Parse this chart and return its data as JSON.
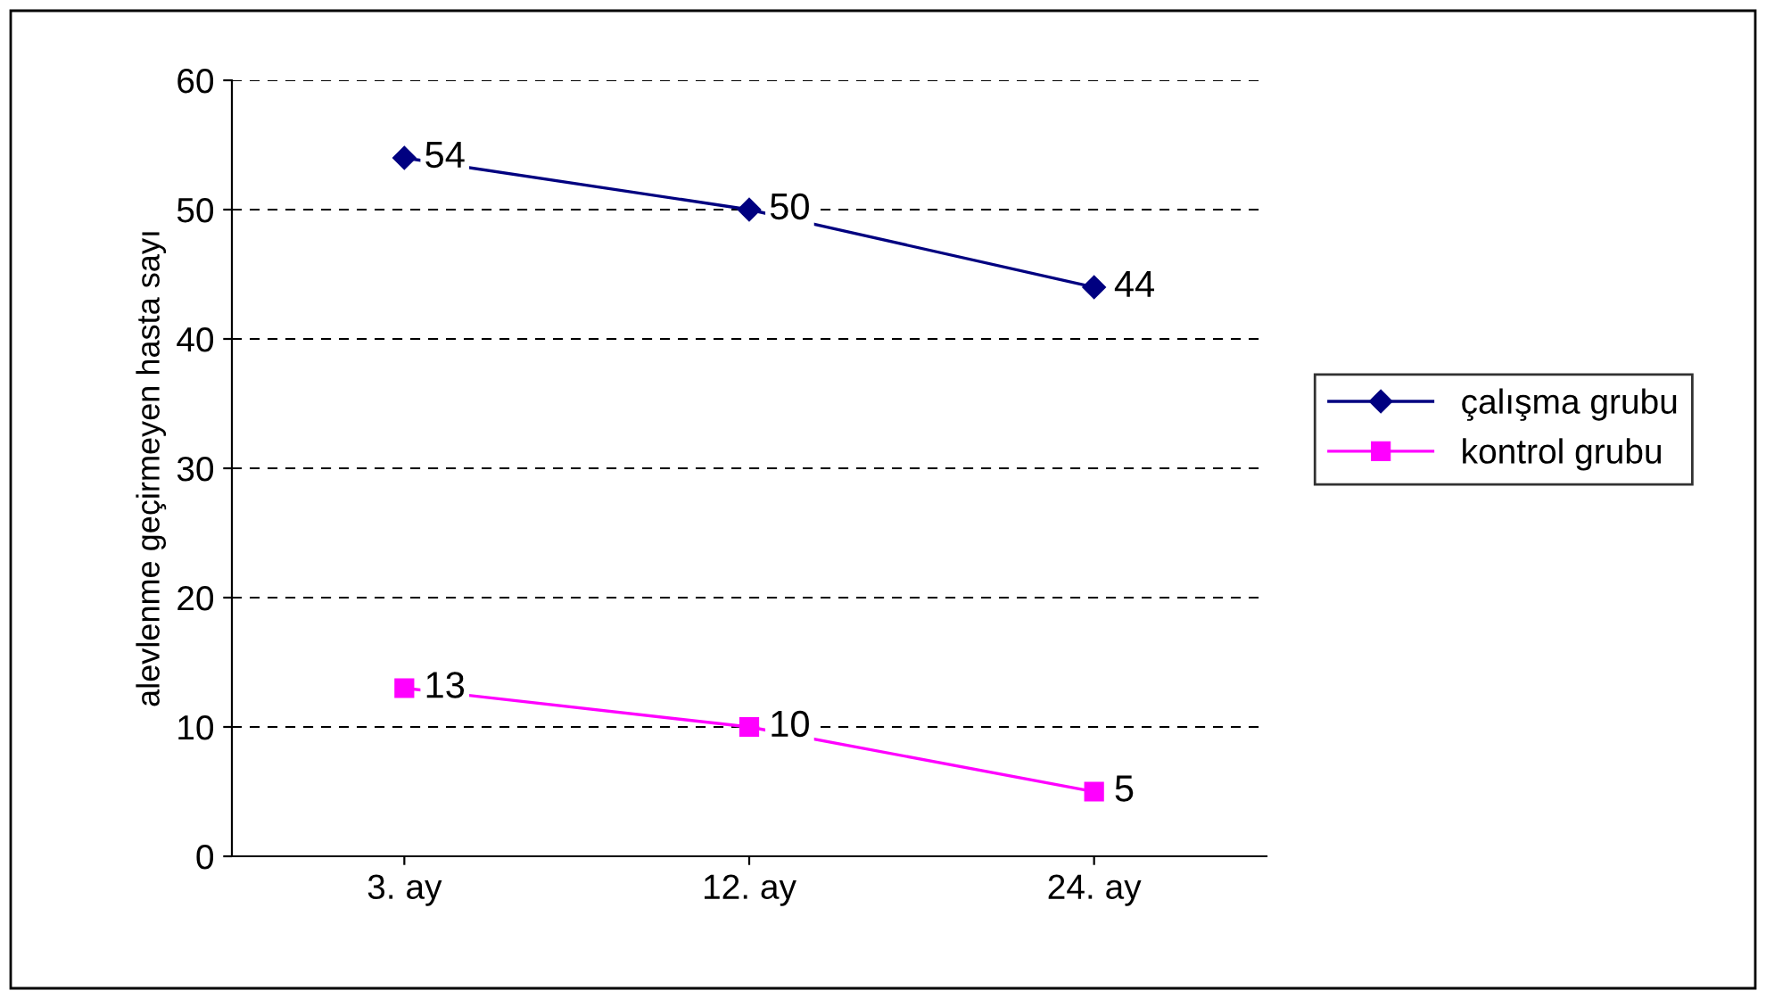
{
  "chart_data": {
    "type": "line",
    "ylabel": "alevlenme geçirmeyen hasta sayı",
    "categories": [
      "3. ay",
      "12. ay",
      "24. ay"
    ],
    "series": [
      {
        "name": "çalışma grubu",
        "color": "#000080",
        "marker": "diamond",
        "values": [
          54,
          50,
          44
        ]
      },
      {
        "name": "kontrol grubu",
        "color": "#ff00ff",
        "marker": "square",
        "values": [
          13,
          10,
          5
        ]
      }
    ],
    "ylim": [
      0,
      60
    ],
    "yticks": [
      0,
      10,
      20,
      30,
      40,
      50,
      60
    ],
    "grid": "y",
    "legend": "right",
    "data_labels": true
  }
}
